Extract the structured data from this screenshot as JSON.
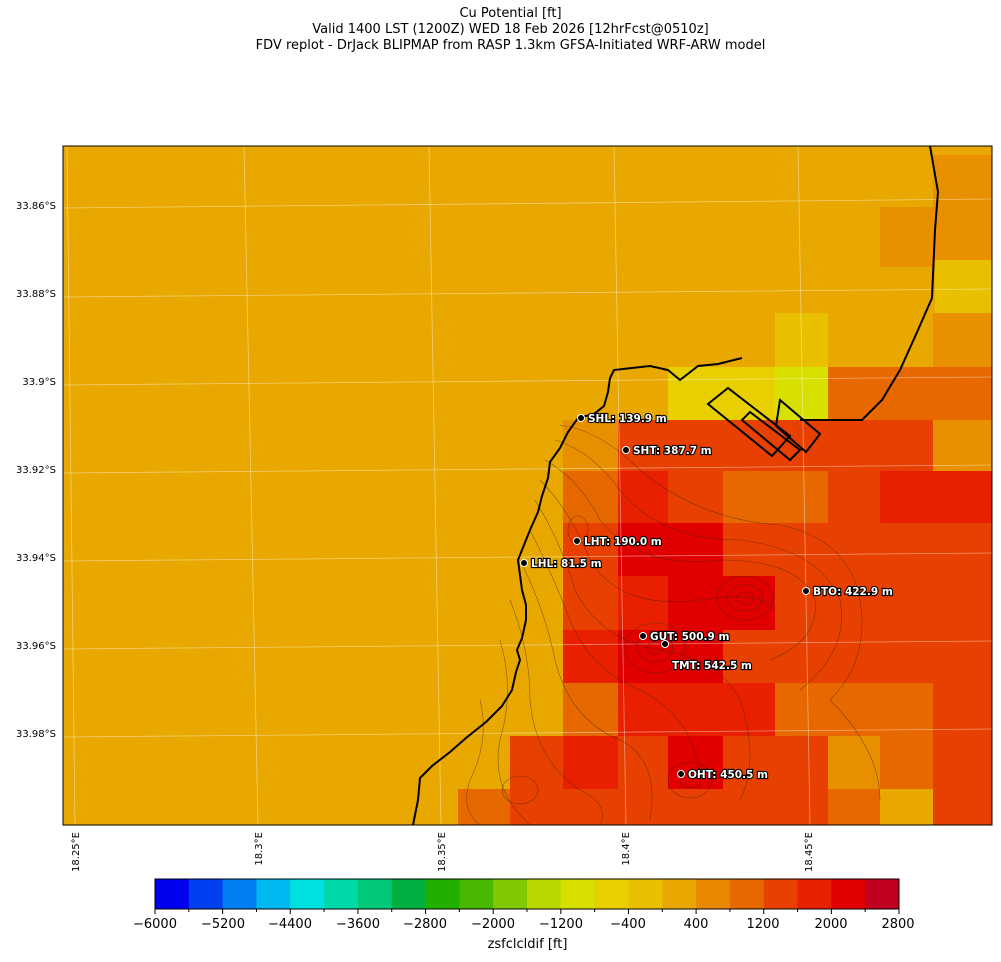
{
  "title": {
    "line1": "Cu Potential [ft]",
    "line2": "Valid 1400 LST (1200Z) WED 18 Feb 2026 [12hrFcst@0510z]",
    "line3": "FDV replot - DrJack BLIPMAP from RASP 1.3km GFSA-Initiated WRF-ARW model"
  },
  "axes": {
    "lat_labels": [
      "33.86°S",
      "33.88°S",
      "33.9°S",
      "33.92°S",
      "33.94°S",
      "33.96°S",
      "33.98°S"
    ],
    "lon_labels": [
      "18.25°E",
      "18.3°E",
      "18.35°E",
      "18.4°E",
      "18.45°E"
    ]
  },
  "stations": [
    {
      "code": "SHL",
      "label": "SHL: 139.9 m"
    },
    {
      "code": "SHT",
      "label": "SHT: 387.7 m"
    },
    {
      "code": "LHT",
      "label": "LHT: 190.0 m"
    },
    {
      "code": "LHL",
      "label": "LHL: 81.5 m"
    },
    {
      "code": "BTO",
      "label": "BTO: 422.9 m"
    },
    {
      "code": "GUT",
      "label": "GUT: 500.9 m"
    },
    {
      "code": "TMT",
      "label": "TMT: 542.5 m"
    },
    {
      "code": "OHT",
      "label": "OHT: 450.5 m"
    }
  ],
  "colorbar": {
    "label": "zsfclcldif [ft]",
    "tick_labels": [
      "−6000",
      "−5200",
      "−4400",
      "−3600",
      "−2800",
      "−2000",
      "−1200",
      "−400",
      "400",
      "1200",
      "2000",
      "2800"
    ],
    "range": [
      -6000,
      2800
    ],
    "colors": [
      "#0000f0",
      "#0040f0",
      "#0080f0",
      "#00b8f0",
      "#00e0e0",
      "#00d8a8",
      "#00c878",
      "#00b040",
      "#20b000",
      "#48b800",
      "#80c800",
      "#b8d800",
      "#d8e000",
      "#e8d000",
      "#e8c000",
      "#e8a800",
      "#e88800",
      "#e86800",
      "#e84000",
      "#e82000",
      "#e00000",
      "#c00020"
    ],
    "background_value": 200,
    "background_color": "#e8a800"
  }
}
